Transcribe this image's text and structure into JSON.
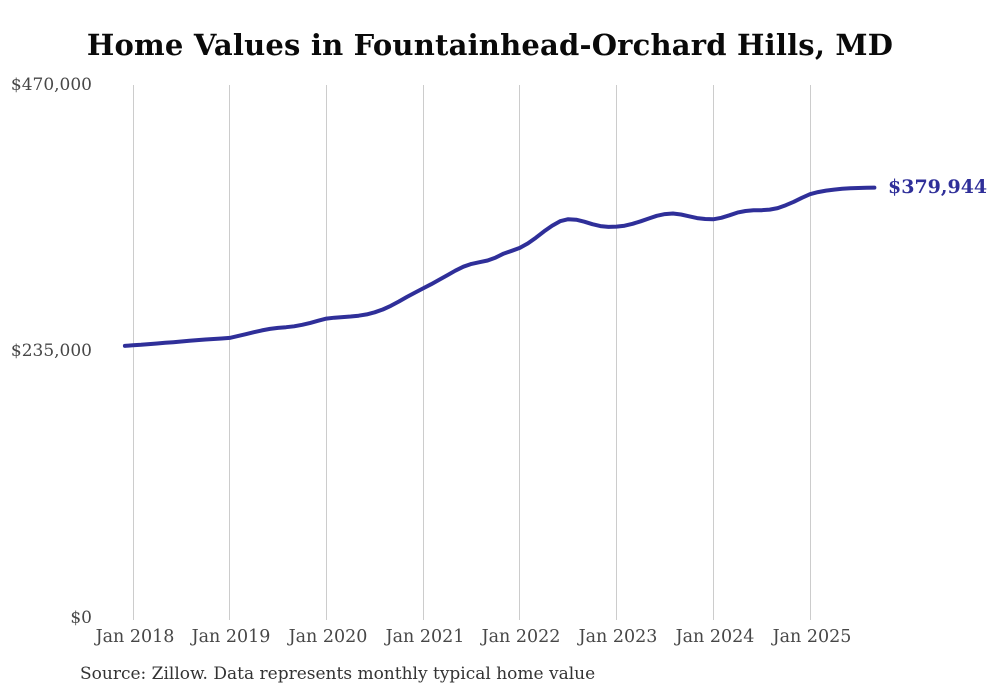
{
  "chart_data": {
    "type": "line",
    "title": "Home Values in Fountainhead-Orchard Hills, MD",
    "source_note": "Source: Zillow. Data represents monthly typical home value",
    "end_label": "$379,944",
    "final_value": 379944,
    "line_color": "#2f2f99",
    "grid_color": "#cccccc",
    "legend": "none",
    "grid": "vertical-only",
    "ylim": [
      0,
      470000
    ],
    "y_ticks": [
      470000,
      235000,
      0
    ],
    "y_tick_labels": [
      "$470,000",
      "$235,000",
      "$0"
    ],
    "x_tick_labels": [
      "Jan 2018",
      "Jan 2019",
      "Jan 2020",
      "Jan 2021",
      "Jan 2022",
      "Jan 2023",
      "Jan 2024",
      "Jan 2025"
    ],
    "series": [
      {
        "name": "Monthly typical home value",
        "unit": "USD",
        "months": [
          "2017-12",
          "2018-01",
          "2018-02",
          "2018-03",
          "2018-04",
          "2018-05",
          "2018-06",
          "2018-07",
          "2018-08",
          "2018-09",
          "2018-10",
          "2018-11",
          "2018-12",
          "2019-01",
          "2019-02",
          "2019-03",
          "2019-04",
          "2019-05",
          "2019-06",
          "2019-07",
          "2019-08",
          "2019-09",
          "2019-10",
          "2019-11",
          "2019-12",
          "2020-01",
          "2020-02",
          "2020-03",
          "2020-04",
          "2020-05",
          "2020-06",
          "2020-07",
          "2020-08",
          "2020-09",
          "2020-10",
          "2020-11",
          "2020-12",
          "2021-01",
          "2021-02",
          "2021-03",
          "2021-04",
          "2021-05",
          "2021-06",
          "2021-07",
          "2021-08",
          "2021-09",
          "2021-10",
          "2021-11",
          "2021-12",
          "2022-01",
          "2022-02",
          "2022-03",
          "2022-04",
          "2022-05",
          "2022-06",
          "2022-07",
          "2022-08",
          "2022-09",
          "2022-10",
          "2022-11",
          "2022-12",
          "2023-01",
          "2023-02",
          "2023-03",
          "2023-04",
          "2023-05",
          "2023-06",
          "2023-07",
          "2023-08",
          "2023-09",
          "2023-10",
          "2023-11",
          "2023-12",
          "2024-01",
          "2024-02",
          "2024-03",
          "2024-04",
          "2024-05",
          "2024-06",
          "2024-07",
          "2024-08",
          "2024-09",
          "2024-10",
          "2024-11",
          "2024-12",
          "2025-01",
          "2025-02",
          "2025-03",
          "2025-04",
          "2025-05",
          "2025-06",
          "2025-07",
          "2025-08",
          "2025-09"
        ],
        "values": [
          241000,
          241500,
          242000,
          242600,
          243100,
          243700,
          244300,
          244900,
          245500,
          246100,
          246600,
          247100,
          247500,
          248000,
          249600,
          251300,
          253000,
          254600,
          255900,
          256800,
          257400,
          258200,
          259500,
          261200,
          263100,
          265000,
          265800,
          266300,
          266800,
          267500,
          268700,
          270500,
          273000,
          276200,
          280000,
          284000,
          287800,
          291500,
          295200,
          299000,
          303000,
          307000,
          310500,
          313000,
          314500,
          316000,
          318500,
          322000,
          324500,
          327000,
          331000,
          336000,
          341500,
          346500,
          350500,
          352200,
          351800,
          350000,
          347800,
          346200,
          345500,
          345700,
          346500,
          348200,
          350400,
          352800,
          355200,
          356700,
          357200,
          356300,
          354800,
          353200,
          352400,
          352100,
          353400,
          355600,
          358000,
          359400,
          360000,
          360100,
          360600,
          362000,
          364500,
          367500,
          371000,
          374200,
          376000,
          377300,
          378200,
          378900,
          379300,
          379600,
          379800,
          379944
        ]
      }
    ]
  }
}
